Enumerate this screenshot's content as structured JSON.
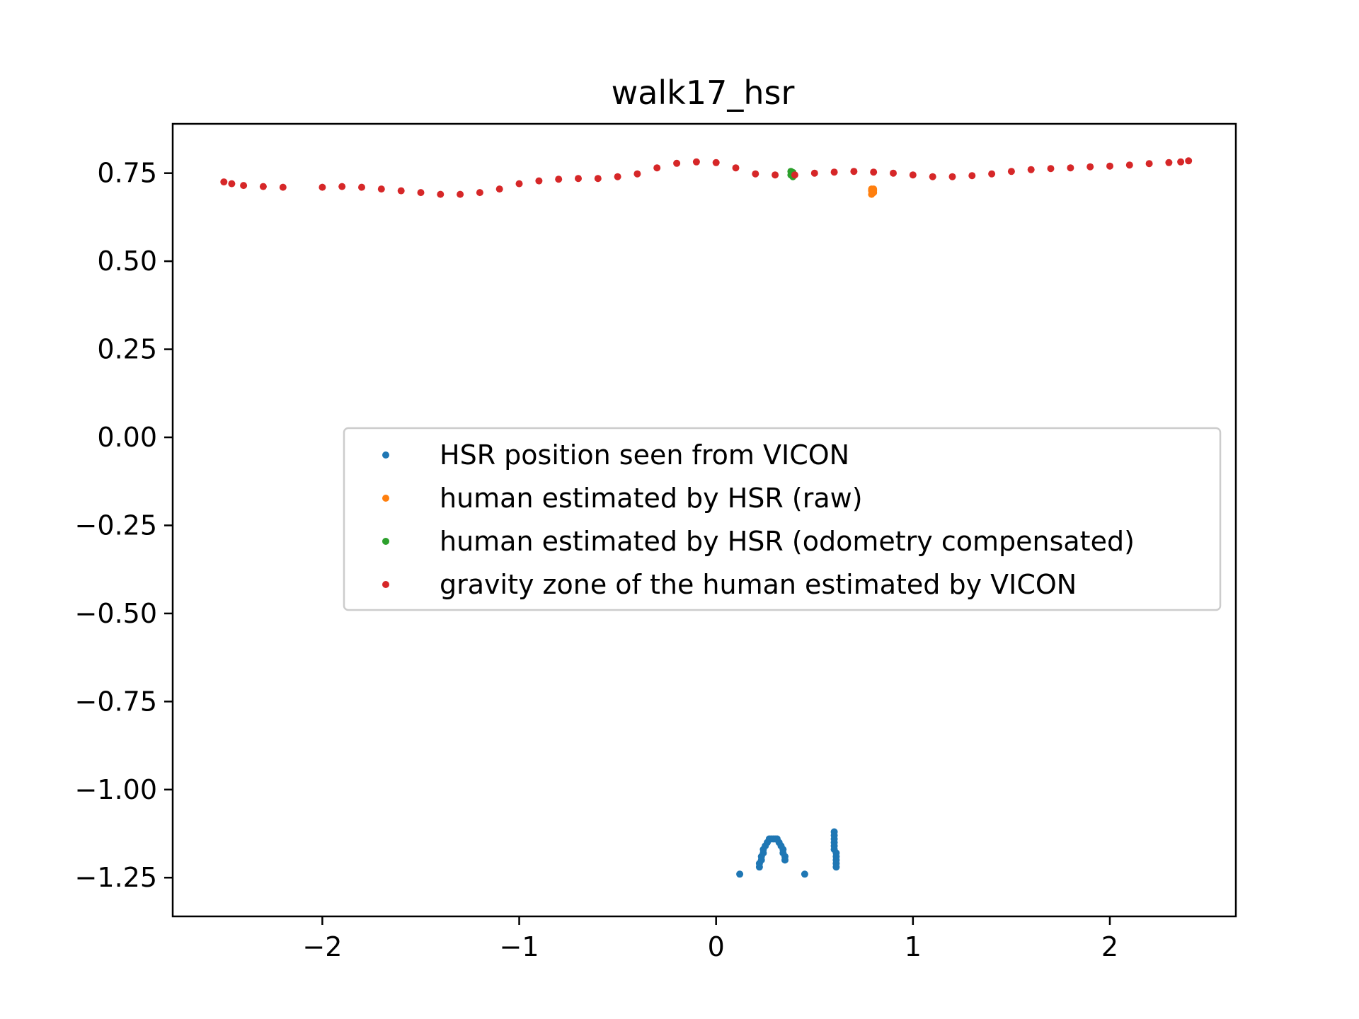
{
  "chart_data": {
    "type": "scatter",
    "title": "walk17_hsr",
    "xlabel": "",
    "ylabel": "",
    "xlim": [
      -2.76,
      2.64
    ],
    "ylim": [
      -1.36,
      0.89
    ],
    "xticks": [
      {
        "value": -2,
        "label": "−2"
      },
      {
        "value": -1,
        "label": "−1"
      },
      {
        "value": 0,
        "label": "0"
      },
      {
        "value": 1,
        "label": "1"
      },
      {
        "value": 2,
        "label": "2"
      }
    ],
    "yticks": [
      {
        "value": 0.75,
        "label": "0.75"
      },
      {
        "value": 0.5,
        "label": "0.50"
      },
      {
        "value": 0.25,
        "label": "0.25"
      },
      {
        "value": 0.0,
        "label": "0.00"
      },
      {
        "value": -0.25,
        "label": "−0.25"
      },
      {
        "value": -0.5,
        "label": "−0.50"
      },
      {
        "value": -0.75,
        "label": "−0.75"
      },
      {
        "value": -1.0,
        "label": "−1.00"
      },
      {
        "value": -1.25,
        "label": "−1.25"
      }
    ],
    "grid": false,
    "legend_position": "center-right",
    "series": [
      {
        "name": "HSR position seen from VICON",
        "color": "#1f77b4",
        "points": [
          [
            0.12,
            -1.24
          ],
          [
            0.45,
            -1.24
          ],
          [
            0.22,
            -1.22
          ],
          [
            0.22,
            -1.21
          ],
          [
            0.23,
            -1.2
          ],
          [
            0.23,
            -1.19
          ],
          [
            0.24,
            -1.18
          ],
          [
            0.24,
            -1.17
          ],
          [
            0.25,
            -1.16
          ],
          [
            0.26,
            -1.15
          ],
          [
            0.27,
            -1.14
          ],
          [
            0.28,
            -1.14
          ],
          [
            0.29,
            -1.14
          ],
          [
            0.3,
            -1.14
          ],
          [
            0.31,
            -1.14
          ],
          [
            0.32,
            -1.15
          ],
          [
            0.33,
            -1.16
          ],
          [
            0.34,
            -1.17
          ],
          [
            0.34,
            -1.18
          ],
          [
            0.35,
            -1.19
          ],
          [
            0.35,
            -1.2
          ],
          [
            0.6,
            -1.12
          ],
          [
            0.6,
            -1.13
          ],
          [
            0.6,
            -1.14
          ],
          [
            0.6,
            -1.15
          ],
          [
            0.6,
            -1.16
          ],
          [
            0.6,
            -1.17
          ],
          [
            0.61,
            -1.18
          ],
          [
            0.61,
            -1.19
          ],
          [
            0.61,
            -1.2
          ],
          [
            0.61,
            -1.21
          ],
          [
            0.61,
            -1.22
          ]
        ]
      },
      {
        "name": "human estimated by HSR (raw)",
        "color": "#ff7f0e",
        "points": [
          [
            0.79,
            0.705
          ],
          [
            0.79,
            0.7
          ],
          [
            0.8,
            0.695
          ],
          [
            0.79,
            0.69
          ],
          [
            0.8,
            0.7
          ],
          [
            0.8,
            0.705
          ]
        ]
      },
      {
        "name": "human estimated by HSR (odometry compensated)",
        "color": "#2ca02c",
        "points": [
          [
            0.38,
            0.755
          ],
          [
            0.39,
            0.75
          ],
          [
            0.38,
            0.745
          ],
          [
            0.39,
            0.74
          ],
          [
            0.39,
            0.752
          ]
        ]
      },
      {
        "name": "gravity zone of the human estimated by VICON",
        "color": "#d62728",
        "points": [
          [
            -2.5,
            0.725
          ],
          [
            -2.46,
            0.72
          ],
          [
            -2.4,
            0.715
          ],
          [
            -2.3,
            0.712
          ],
          [
            -2.2,
            0.71
          ],
          [
            -2.0,
            0.71
          ],
          [
            -1.9,
            0.712
          ],
          [
            -1.8,
            0.71
          ],
          [
            -1.7,
            0.705
          ],
          [
            -1.6,
            0.7
          ],
          [
            -1.5,
            0.695
          ],
          [
            -1.4,
            0.69
          ],
          [
            -1.3,
            0.69
          ],
          [
            -1.2,
            0.695
          ],
          [
            -1.1,
            0.705
          ],
          [
            -1.0,
            0.72
          ],
          [
            -0.9,
            0.728
          ],
          [
            -0.8,
            0.733
          ],
          [
            -0.7,
            0.735
          ],
          [
            -0.6,
            0.735
          ],
          [
            -0.5,
            0.74
          ],
          [
            -0.4,
            0.748
          ],
          [
            -0.3,
            0.765
          ],
          [
            -0.2,
            0.778
          ],
          [
            -0.1,
            0.782
          ],
          [
            0.0,
            0.78
          ],
          [
            0.1,
            0.765
          ],
          [
            0.2,
            0.748
          ],
          [
            0.3,
            0.745
          ],
          [
            0.4,
            0.745
          ],
          [
            0.5,
            0.75
          ],
          [
            0.6,
            0.753
          ],
          [
            0.7,
            0.755
          ],
          [
            0.8,
            0.753
          ],
          [
            0.9,
            0.75
          ],
          [
            1.0,
            0.745
          ],
          [
            1.1,
            0.74
          ],
          [
            1.2,
            0.74
          ],
          [
            1.3,
            0.743
          ],
          [
            1.4,
            0.748
          ],
          [
            1.5,
            0.755
          ],
          [
            1.6,
            0.76
          ],
          [
            1.7,
            0.763
          ],
          [
            1.8,
            0.765
          ],
          [
            1.9,
            0.768
          ],
          [
            2.0,
            0.77
          ],
          [
            2.1,
            0.773
          ],
          [
            2.2,
            0.777
          ],
          [
            2.3,
            0.78
          ],
          [
            2.36,
            0.782
          ],
          [
            2.4,
            0.785
          ]
        ]
      }
    ]
  }
}
